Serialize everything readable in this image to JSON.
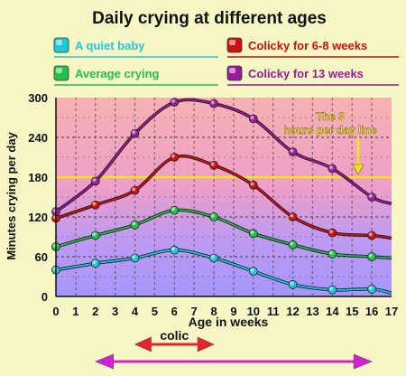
{
  "chart_data": {
    "type": "line",
    "title": "Daily crying at different ages",
    "xlabel": "Age in weeks",
    "ylabel": "Minutes crying per day",
    "xlim": [
      0,
      17
    ],
    "ylim": [
      0,
      300
    ],
    "x_ticks": [
      0,
      1,
      2,
      3,
      4,
      5,
      6,
      7,
      8,
      9,
      10,
      11,
      12,
      13,
      14,
      15,
      16,
      17
    ],
    "y_ticks": [
      0,
      60,
      120,
      180,
      240,
      300
    ],
    "grid": true,
    "legend_position": "top",
    "reference_line": {
      "y": 180,
      "label": "The 3 hours per day line",
      "color": "#f2e416"
    },
    "series": [
      {
        "name": "A quiet baby",
        "color": "#1fc8d8",
        "x": [
          0,
          2,
          4,
          6,
          8,
          10,
          12,
          14,
          16,
          17
        ],
        "values": [
          40,
          50,
          58,
          70,
          58,
          38,
          18,
          10,
          11,
          5
        ]
      },
      {
        "name": "Average crying",
        "color": "#22c04a",
        "x": [
          0,
          2,
          4,
          6,
          8,
          10,
          12,
          14,
          16,
          17
        ],
        "values": [
          75,
          92,
          108,
          130,
          120,
          95,
          78,
          64,
          60,
          58
        ]
      },
      {
        "name": "Colicky for 6-8 weeks",
        "color": "#cc1010",
        "x": [
          0,
          2,
          4,
          6,
          8,
          10,
          12,
          14,
          16,
          17
        ],
        "values": [
          118,
          138,
          160,
          210,
          198,
          168,
          120,
          96,
          92,
          88
        ]
      },
      {
        "name": "Colicky for 13 weeks",
        "color": "#9a1a9a",
        "x": [
          0,
          2,
          4,
          6,
          8,
          10,
          12,
          14,
          16,
          17
        ],
        "values": [
          128,
          174,
          246,
          293,
          291,
          268,
          218,
          193,
          150,
          140
        ]
      }
    ],
    "annotations": [
      {
        "label": "colic",
        "x_range": [
          4,
          8
        ],
        "color": "#e8222a"
      },
      {
        "label": "",
        "x_range": [
          2,
          16
        ],
        "color": "#d421d4"
      }
    ]
  }
}
